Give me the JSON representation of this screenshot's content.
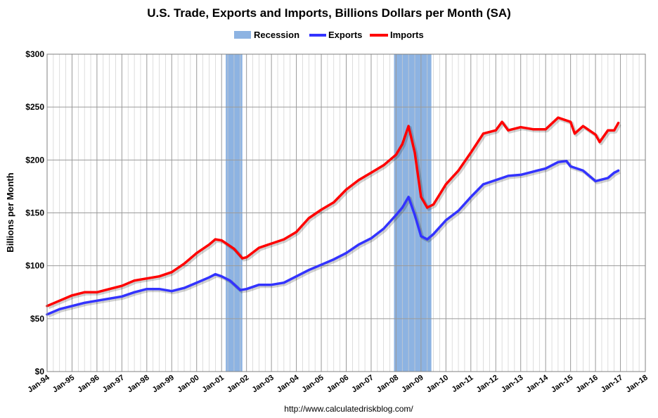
{
  "chart_data": {
    "type": "line",
    "title": "U.S. Trade, Exports and Imports, Billions Dollars per Month (SA)",
    "xlabel": "",
    "ylabel": "Billions per Month",
    "ylim": [
      0,
      300
    ],
    "xlim": [
      "Jan-94",
      "Jan-18"
    ],
    "grid": true,
    "legend_position": "top-center",
    "source": "http://www.calculatedriskblog.com/",
    "y_ticks": [
      "$0",
      "$50",
      "$100",
      "$150",
      "$200",
      "$250",
      "$300"
    ],
    "x_ticks": [
      "Jan-94",
      "Jan-95",
      "Jan-96",
      "Jan-97",
      "Jan-98",
      "Jan-99",
      "Jan-00",
      "Jan-01",
      "Jan-02",
      "Jan-03",
      "Jan-04",
      "Jan-05",
      "Jan-06",
      "Jan-07",
      "Jan-08",
      "Jan-09",
      "Jan-10",
      "Jan-11",
      "Jan-12",
      "Jan-13",
      "Jan-14",
      "Jan-15",
      "Jan-16",
      "Jan-17",
      "Jan-18"
    ],
    "legend": [
      {
        "name": "Recession",
        "color": "#8db3e2",
        "kind": "area"
      },
      {
        "name": "Exports",
        "color": "#3333ff",
        "kind": "line"
      },
      {
        "name": "Imports",
        "color": "#ff0000",
        "kind": "line"
      }
    ],
    "recessions": [
      {
        "start": "2001-03",
        "end": "2001-11"
      },
      {
        "start": "2007-12",
        "end": "2009-06"
      }
    ],
    "series": [
      {
        "name": "Exports",
        "color": "#3333ff",
        "points": [
          [
            "1994-01",
            54
          ],
          [
            "1994-07",
            59
          ],
          [
            "1995-01",
            62
          ],
          [
            "1995-07",
            65
          ],
          [
            "1996-01",
            67
          ],
          [
            "1996-07",
            69
          ],
          [
            "1997-01",
            71
          ],
          [
            "1997-07",
            75
          ],
          [
            "1998-01",
            78
          ],
          [
            "1998-07",
            78
          ],
          [
            "1999-01",
            76
          ],
          [
            "1999-07",
            79
          ],
          [
            "2000-01",
            84
          ],
          [
            "2000-07",
            89
          ],
          [
            "2000-10",
            92
          ],
          [
            "2001-01",
            90
          ],
          [
            "2001-05",
            86
          ],
          [
            "2001-10",
            77
          ],
          [
            "2002-01",
            78
          ],
          [
            "2002-07",
            82
          ],
          [
            "2003-01",
            82
          ],
          [
            "2003-07",
            84
          ],
          [
            "2004-01",
            90
          ],
          [
            "2004-07",
            96
          ],
          [
            "2005-01",
            101
          ],
          [
            "2005-07",
            106
          ],
          [
            "2006-01",
            112
          ],
          [
            "2006-07",
            120
          ],
          [
            "2007-01",
            126
          ],
          [
            "2007-07",
            135
          ],
          [
            "2008-01",
            148
          ],
          [
            "2008-04",
            155
          ],
          [
            "2008-07",
            165
          ],
          [
            "2008-10",
            148
          ],
          [
            "2009-01",
            128
          ],
          [
            "2009-04",
            125
          ],
          [
            "2009-07",
            130
          ],
          [
            "2010-01",
            143
          ],
          [
            "2010-07",
            152
          ],
          [
            "2011-01",
            165
          ],
          [
            "2011-07",
            177
          ],
          [
            "2012-01",
            181
          ],
          [
            "2012-07",
            185
          ],
          [
            "2013-01",
            186
          ],
          [
            "2013-07",
            189
          ],
          [
            "2014-01",
            192
          ],
          [
            "2014-07",
            198
          ],
          [
            "2014-11",
            199
          ],
          [
            "2015-01",
            194
          ],
          [
            "2015-07",
            190
          ],
          [
            "2016-01",
            180
          ],
          [
            "2016-07",
            183
          ],
          [
            "2016-10",
            188
          ],
          [
            "2016-12",
            190
          ]
        ]
      },
      {
        "name": "Imports",
        "color": "#ff0000",
        "points": [
          [
            "1994-01",
            62
          ],
          [
            "1994-07",
            67
          ],
          [
            "1995-01",
            72
          ],
          [
            "1995-07",
            75
          ],
          [
            "1996-01",
            75
          ],
          [
            "1996-07",
            78
          ],
          [
            "1997-01",
            81
          ],
          [
            "1997-07",
            86
          ],
          [
            "1998-01",
            88
          ],
          [
            "1998-07",
            90
          ],
          [
            "1999-01",
            94
          ],
          [
            "1999-07",
            102
          ],
          [
            "2000-01",
            112
          ],
          [
            "2000-07",
            120
          ],
          [
            "2000-10",
            125
          ],
          [
            "2001-01",
            124
          ],
          [
            "2001-07",
            116
          ],
          [
            "2001-11",
            107
          ],
          [
            "2002-01",
            108
          ],
          [
            "2002-07",
            117
          ],
          [
            "2003-01",
            121
          ],
          [
            "2003-07",
            125
          ],
          [
            "2004-01",
            132
          ],
          [
            "2004-07",
            145
          ],
          [
            "2005-01",
            153
          ],
          [
            "2005-07",
            160
          ],
          [
            "2006-01",
            172
          ],
          [
            "2006-07",
            181
          ],
          [
            "2007-01",
            188
          ],
          [
            "2007-07",
            195
          ],
          [
            "2008-01",
            205
          ],
          [
            "2008-04",
            215
          ],
          [
            "2008-07",
            232
          ],
          [
            "2008-10",
            207
          ],
          [
            "2009-01",
            165
          ],
          [
            "2009-04",
            155
          ],
          [
            "2009-07",
            158
          ],
          [
            "2010-01",
            177
          ],
          [
            "2010-07",
            190
          ],
          [
            "2011-01",
            207
          ],
          [
            "2011-07",
            225
          ],
          [
            "2012-01",
            228
          ],
          [
            "2012-04",
            236
          ],
          [
            "2012-07",
            228
          ],
          [
            "2013-01",
            231
          ],
          [
            "2013-07",
            229
          ],
          [
            "2014-01",
            229
          ],
          [
            "2014-07",
            240
          ],
          [
            "2015-01",
            236
          ],
          [
            "2015-03",
            225
          ],
          [
            "2015-07",
            232
          ],
          [
            "2016-01",
            224
          ],
          [
            "2016-03",
            217
          ],
          [
            "2016-07",
            228
          ],
          [
            "2016-10",
            228
          ],
          [
            "2016-12",
            235
          ]
        ]
      }
    ]
  }
}
